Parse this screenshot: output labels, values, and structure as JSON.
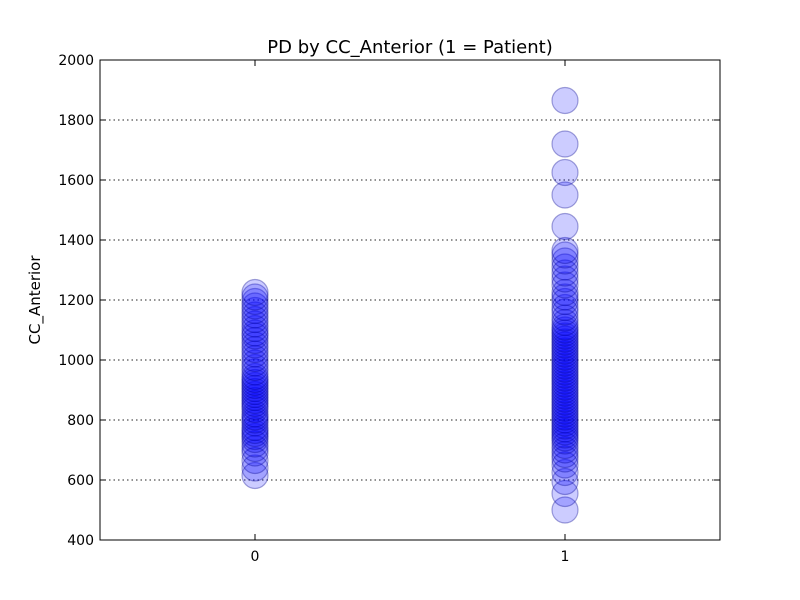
{
  "chart_data": {
    "type": "scatter",
    "title": "PD by CC_Anterior (1 = Patient)",
    "xlabel": "",
    "ylabel": "CC_Anterior",
    "xlim": [
      -0.5,
      1.5
    ],
    "ylim": [
      400,
      2000
    ],
    "xticks": [
      "0",
      "1"
    ],
    "yticks": [
      "400",
      "600",
      "800",
      "1000",
      "1200",
      "1400",
      "1600",
      "1800",
      "2000"
    ],
    "grid": {
      "y": true,
      "x": false,
      "style": "dotted"
    },
    "marker_color": "#0000ff",
    "marker_edge_color": "#00008b",
    "marker_alpha": 0.2,
    "series": [
      {
        "x": 0,
        "values": [
          615,
          640,
          665,
          690,
          705,
          720,
          735,
          745,
          755,
          765,
          775,
          790,
          800,
          810,
          820,
          835,
          845,
          855,
          865,
          875,
          885,
          895,
          905,
          915,
          925,
          935,
          945,
          960,
          975,
          990,
          1005,
          1020,
          1035,
          1050,
          1065,
          1080,
          1090,
          1105,
          1120,
          1135,
          1150,
          1165,
          1180,
          1195,
          1210,
          1225
        ]
      },
      {
        "x": 1,
        "values": [
          500,
          555,
          595,
          625,
          650,
          670,
          685,
          700,
          715,
          730,
          740,
          750,
          760,
          770,
          780,
          790,
          800,
          810,
          820,
          830,
          840,
          850,
          860,
          870,
          880,
          890,
          900,
          910,
          920,
          930,
          940,
          950,
          960,
          970,
          980,
          990,
          1000,
          1010,
          1020,
          1030,
          1040,
          1050,
          1060,
          1070,
          1080,
          1090,
          1100,
          1110,
          1125,
          1140,
          1160,
          1175,
          1195,
          1210,
          1225,
          1250,
          1270,
          1290,
          1310,
          1330,
          1350,
          1365,
          1445,
          1550,
          1625,
          1720,
          1865
        ]
      }
    ]
  }
}
